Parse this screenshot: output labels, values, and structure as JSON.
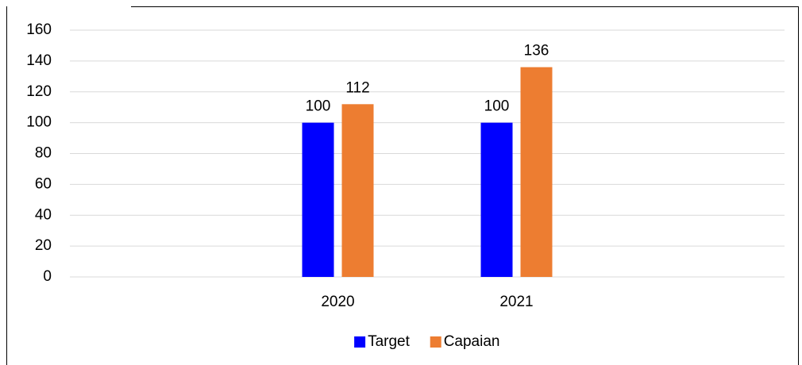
{
  "chart_data": {
    "type": "bar",
    "categories": [
      null,
      "2020",
      "2021",
      null
    ],
    "series": [
      {
        "name": "Target",
        "color": "#0000ff",
        "values": [
          null,
          100,
          100,
          null
        ]
      },
      {
        "name": "Capaian",
        "color": "#ed7d31",
        "values": [
          null,
          112,
          136,
          null
        ]
      }
    ],
    "ylim": [
      0,
      160
    ],
    "yticks": [
      0,
      20,
      40,
      60,
      80,
      100,
      120,
      140,
      160
    ],
    "grid": true,
    "legend": "bottom"
  }
}
